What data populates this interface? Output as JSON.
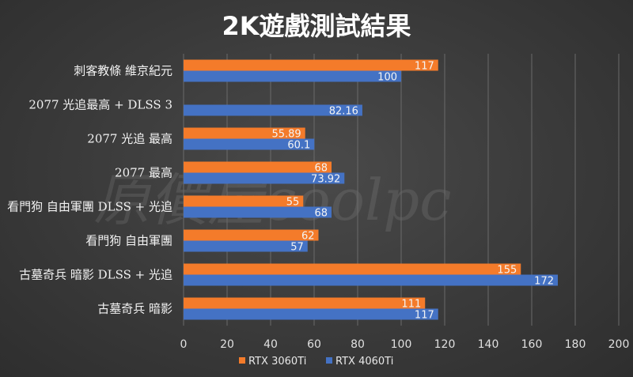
{
  "watermark": "原價屋coolpc",
  "chart_data": {
    "type": "bar",
    "orientation": "horizontal",
    "title": "2K遊戲測試結果",
    "categories": [
      "刺客教條 維京紀元",
      "2077 光追最高 + DLSS 3",
      "2077 光追 最高",
      "2077 最高",
      "看門狗 自由軍團 DLSS + 光追",
      "看門狗 自由軍團",
      "古墓奇兵 暗影 DLSS + 光追",
      "古墓奇兵 暗影"
    ],
    "series": [
      {
        "name": "RTX 3060Ti",
        "color": "#f47b2a",
        "values": [
          117,
          null,
          55.89,
          68,
          55,
          62,
          155,
          111
        ],
        "labels": [
          "117",
          "",
          "55.89",
          "68",
          "55",
          "62",
          "155",
          "111"
        ]
      },
      {
        "name": "RTX 4060Ti",
        "color": "#4472c4",
        "values": [
          100,
          82.16,
          60.1,
          73.92,
          68,
          57,
          172,
          117
        ],
        "labels": [
          "100",
          "82.16",
          "60.1",
          "73.92",
          "68",
          "57",
          "172",
          "117"
        ]
      }
    ],
    "x_ticks": [
      0,
      20,
      40,
      60,
      80,
      100,
      120,
      140,
      160,
      180,
      200
    ],
    "xlim": [
      0,
      200
    ],
    "grid": true,
    "legend_position": "bottom"
  }
}
